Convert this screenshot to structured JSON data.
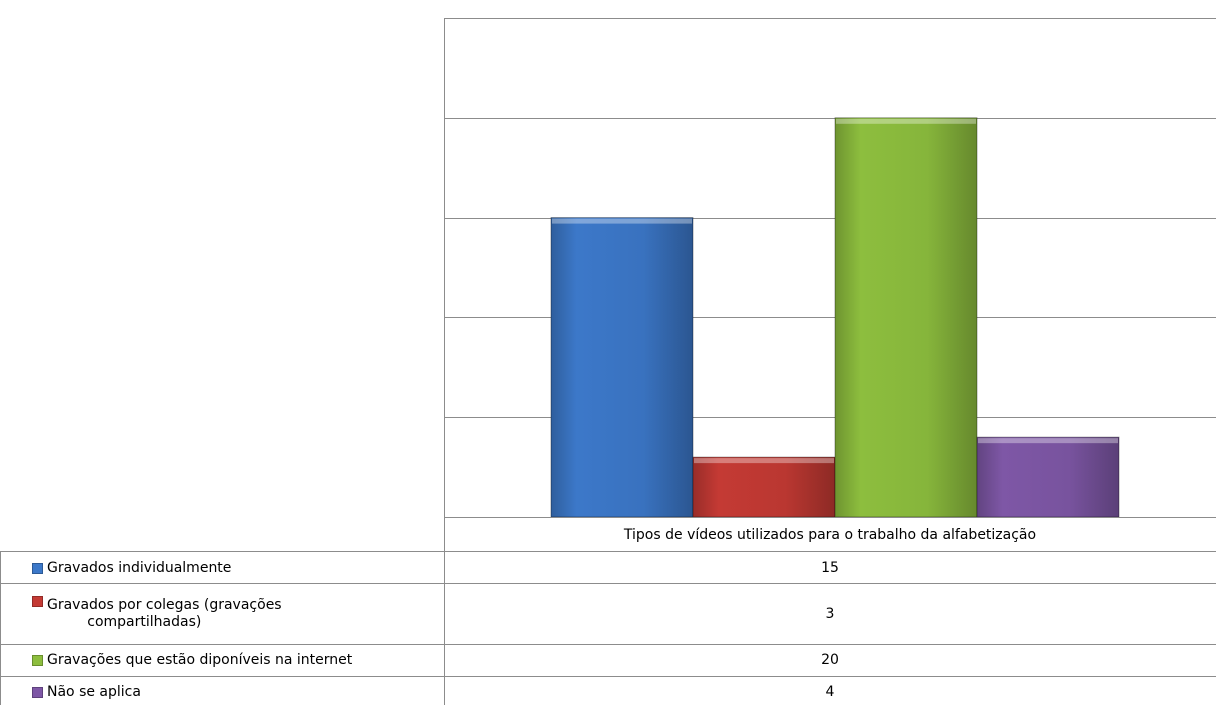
{
  "chart_data": {
    "type": "bar",
    "categories": [
      "Tipos de vídeos utilizados para o trabalho da alfabetização"
    ],
    "series": [
      {
        "name": "Gravados individualmente",
        "values": [
          15
        ],
        "color": "#3C78C9"
      },
      {
        "name": "Gravados por colegas (gravações compartilhadas)",
        "values": [
          3
        ],
        "color": "#C43A34"
      },
      {
        "name": "Gravações que estão diponíveis na internet",
        "values": [
          20
        ],
        "color": "#8DBE3E"
      },
      {
        "name": "Não se aplica",
        "values": [
          4
        ],
        "color": "#7E57A6"
      }
    ],
    "ylim": [
      0,
      25
    ],
    "grid": true,
    "legend_position": "data-table-left"
  },
  "table": {
    "category_label": "Tipos de vídeos utilizados para o trabalho da alfabetização",
    "rows": [
      {
        "label": "Gravados individualmente",
        "value": "15"
      },
      {
        "label_line1": "Gravados por colegas (gravações",
        "label_line2": "compartilhadas)",
        "value": "3"
      },
      {
        "label": "Gravações que estão diponíveis na internet",
        "value": "20"
      },
      {
        "label": "Não se aplica",
        "value": "4"
      }
    ]
  }
}
